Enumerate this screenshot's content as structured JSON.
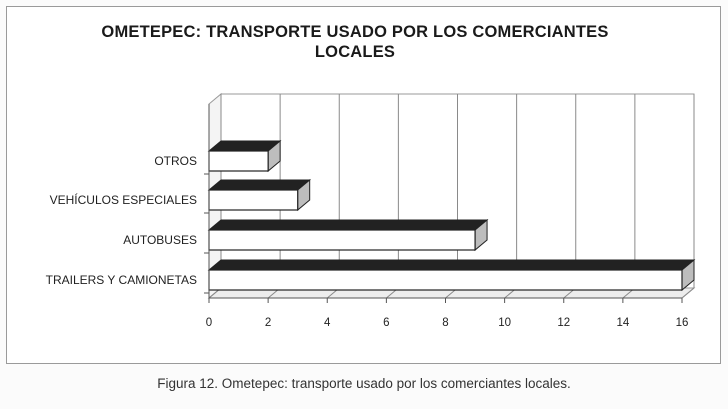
{
  "chart_data": {
    "type": "bar",
    "orientation": "horizontal",
    "title": "OMETEPEC: TRANSPORTE USADO POR LOS COMERCIANTES LOCALES",
    "title_lines": [
      "OMETEPEC: TRANSPORTE USADO POR LOS COMERCIANTES",
      "LOCALES"
    ],
    "categories": [
      "OTROS",
      "VEHÍCULOS ESPECIALES",
      "AUTOBUSES",
      "TRAILERS Y CAMIONETAS"
    ],
    "values": [
      2,
      3,
      9,
      16
    ],
    "xlim": [
      0,
      16
    ],
    "xticks": [
      0,
      2,
      4,
      6,
      8,
      10,
      12,
      14,
      16
    ],
    "grid": true,
    "legend": "none",
    "style": "3d"
  },
  "caption": "Figura 12. Ometepec: transporte usado por los comerciantes locales.",
  "colors": {
    "bar_face": "#ffffff",
    "bar_top": "#222222",
    "bar_outline": "#222222",
    "grid": "#8a8a8a"
  }
}
